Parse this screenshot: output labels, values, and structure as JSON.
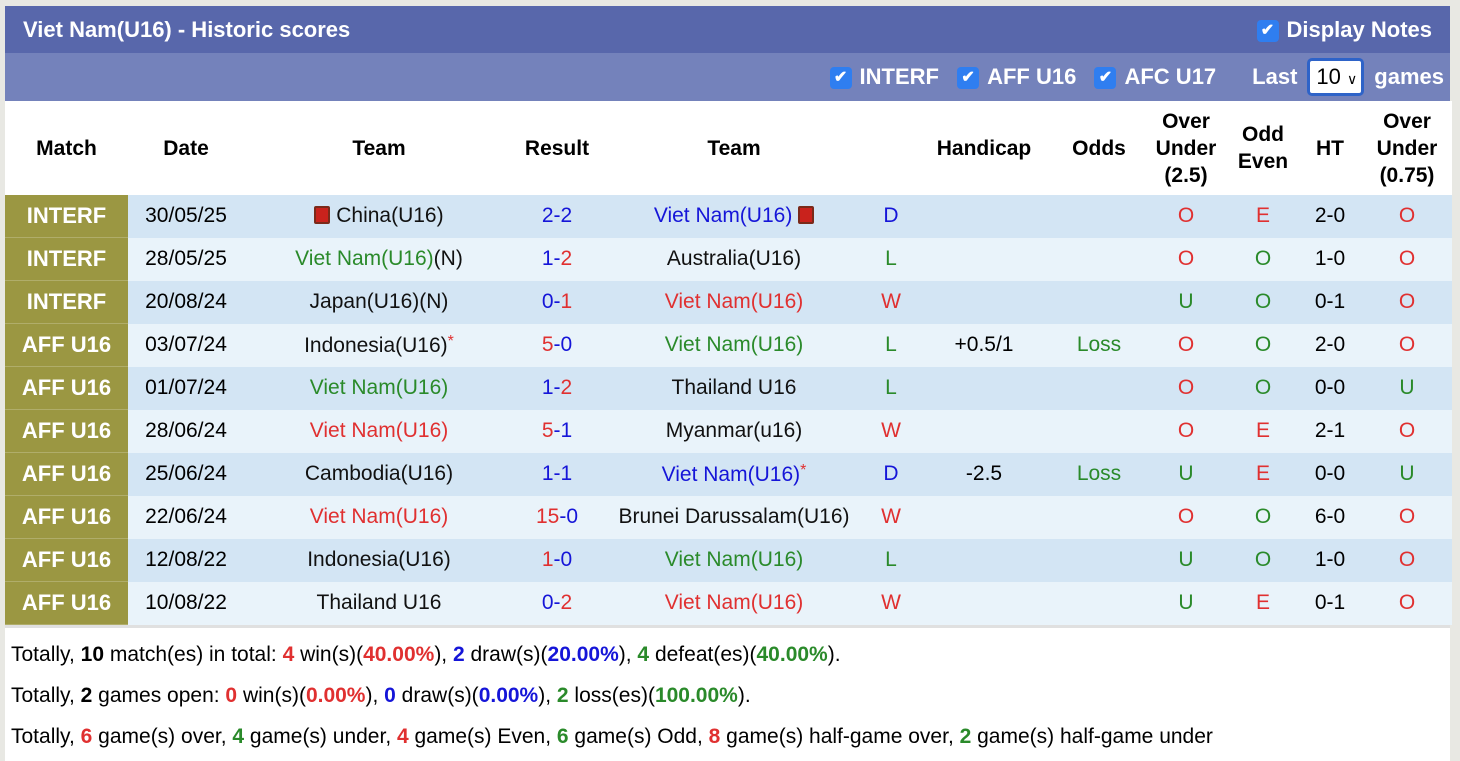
{
  "header": {
    "title": "Viet Nam(U16) - Historic scores",
    "display_notes": "Display Notes"
  },
  "filters": {
    "items": [
      "INTERF",
      "AFF U16",
      "AFC U17"
    ],
    "last_label": "Last",
    "last_value": "10",
    "games_label": "games"
  },
  "columns": [
    "Match",
    "Date",
    "Team",
    "Result",
    "Team",
    "",
    "Handicap",
    "Odds",
    "Over Under (2.5)",
    "Odd Even",
    "HT",
    "Over Under (0.75)"
  ],
  "colors": {
    "league_bg": "#9b9742",
    "title_bg": "#5867ab",
    "red": "#e03030",
    "blue": "#1515d8",
    "green": "#2a8a2a"
  },
  "rows": [
    {
      "league": "INTERF",
      "date": "30/05/25",
      "home": "China(U16)",
      "home_color": "black",
      "home_card": true,
      "hs": "2",
      "as": "2",
      "away": "Viet Nam(U16)",
      "away_color": "blue",
      "away_card": true,
      "res": "D",
      "handicap": "",
      "odds": "",
      "ou": "O",
      "oe": "E",
      "ht": "2-0",
      "ou2": "O"
    },
    {
      "league": "INTERF",
      "date": "28/05/25",
      "home": "Viet Nam(U16)",
      "home_suffix": "(N)",
      "home_color": "green",
      "hs": "1",
      "as": "2",
      "away": "Australia(U16)",
      "away_color": "black",
      "res": "L",
      "handicap": "",
      "odds": "",
      "ou": "O",
      "oe": "O",
      "ht": "1-0",
      "ou2": "O"
    },
    {
      "league": "INTERF",
      "date": "20/08/24",
      "home": "Japan(U16)(N)",
      "home_color": "black",
      "hs": "0",
      "as": "1",
      "away": "Viet Nam(U16)",
      "away_color": "red",
      "res": "W",
      "handicap": "",
      "odds": "",
      "ou": "U",
      "oe": "O",
      "ht": "0-1",
      "ou2": "O"
    },
    {
      "league": "AFF U16",
      "date": "03/07/24",
      "home": "Indonesia(U16)",
      "home_star": true,
      "home_color": "black",
      "hs": "5",
      "as": "0",
      "away": "Viet Nam(U16)",
      "away_color": "green",
      "res": "L",
      "handicap": "+0.5/1",
      "odds": "Loss",
      "ou": "O",
      "oe": "O",
      "ht": "2-0",
      "ou2": "O"
    },
    {
      "league": "AFF U16",
      "date": "01/07/24",
      "home": "Viet Nam(U16)",
      "home_color": "green",
      "hs": "1",
      "as": "2",
      "away": "Thailand U16",
      "away_color": "black",
      "res": "L",
      "handicap": "",
      "odds": "",
      "ou": "O",
      "oe": "O",
      "ht": "0-0",
      "ou2": "U"
    },
    {
      "league": "AFF U16",
      "date": "28/06/24",
      "home": "Viet Nam(U16)",
      "home_color": "red",
      "hs": "5",
      "as": "1",
      "away": "Myanmar(u16)",
      "away_color": "black",
      "res": "W",
      "handicap": "",
      "odds": "",
      "ou": "O",
      "oe": "E",
      "ht": "2-1",
      "ou2": "O"
    },
    {
      "league": "AFF U16",
      "date": "25/06/24",
      "home": "Cambodia(U16)",
      "home_color": "black",
      "hs": "1",
      "as": "1",
      "away": "Viet Nam(U16)",
      "away_star": true,
      "away_color": "blue",
      "res": "D",
      "handicap": "-2.5",
      "odds": "Loss",
      "ou": "U",
      "oe": "E",
      "ht": "0-0",
      "ou2": "U"
    },
    {
      "league": "AFF U16",
      "date": "22/06/24",
      "home": "Viet Nam(U16)",
      "home_color": "red",
      "hs": "15",
      "as": "0",
      "away": "Brunei Darussalam(U16)",
      "away_color": "black",
      "res": "W",
      "handicap": "",
      "odds": "",
      "ou": "O",
      "oe": "O",
      "ht": "6-0",
      "ou2": "O"
    },
    {
      "league": "AFF U16",
      "date": "12/08/22",
      "home": "Indonesia(U16)",
      "home_color": "black",
      "hs": "1",
      "as": "0",
      "away": "Viet Nam(U16)",
      "away_color": "green",
      "res": "L",
      "handicap": "",
      "odds": "",
      "ou": "U",
      "oe": "O",
      "ht": "1-0",
      "ou2": "O"
    },
    {
      "league": "AFF U16",
      "date": "10/08/22",
      "home": "Thailand U16",
      "home_color": "black",
      "hs": "0",
      "as": "2",
      "away": "Viet Nam(U16)",
      "away_color": "red",
      "res": "W",
      "handicap": "",
      "odds": "",
      "ou": "U",
      "oe": "E",
      "ht": "0-1",
      "ou2": "O"
    }
  ],
  "totals": [
    [
      [
        "Totally, ",
        ""
      ],
      [
        "10",
        "b"
      ],
      [
        " match(es) in total: ",
        ""
      ],
      [
        "4",
        "red"
      ],
      [
        " win(s)(",
        ""
      ],
      [
        "40.00%",
        "red"
      ],
      [
        "), ",
        ""
      ],
      [
        "2",
        "blue"
      ],
      [
        " draw(s)(",
        ""
      ],
      [
        "20.00%",
        "blue"
      ],
      [
        "), ",
        ""
      ],
      [
        "4",
        "green"
      ],
      [
        " defeat(es)(",
        ""
      ],
      [
        "40.00%",
        "green"
      ],
      [
        ").",
        ""
      ]
    ],
    [
      [
        "Totally, ",
        ""
      ],
      [
        "2",
        "b"
      ],
      [
        " games open: ",
        ""
      ],
      [
        "0",
        "red"
      ],
      [
        " win(s)(",
        ""
      ],
      [
        "0.00%",
        "red"
      ],
      [
        "), ",
        ""
      ],
      [
        "0",
        "blue"
      ],
      [
        " draw(s)(",
        ""
      ],
      [
        "0.00%",
        "blue"
      ],
      [
        "), ",
        ""
      ],
      [
        "2",
        "green"
      ],
      [
        " loss(es)(",
        ""
      ],
      [
        "100.00%",
        "green"
      ],
      [
        ").",
        ""
      ]
    ],
    [
      [
        "Totally, ",
        ""
      ],
      [
        "6",
        "red"
      ],
      [
        " game(s) over, ",
        ""
      ],
      [
        "4",
        "green"
      ],
      [
        " game(s) under, ",
        ""
      ],
      [
        "4",
        "red"
      ],
      [
        " game(s) Even, ",
        ""
      ],
      [
        "6",
        "green"
      ],
      [
        " game(s) Odd, ",
        ""
      ],
      [
        "8",
        "red"
      ],
      [
        " game(s) half-game over, ",
        ""
      ],
      [
        "2",
        "green"
      ],
      [
        " game(s) half-game under",
        ""
      ]
    ]
  ]
}
